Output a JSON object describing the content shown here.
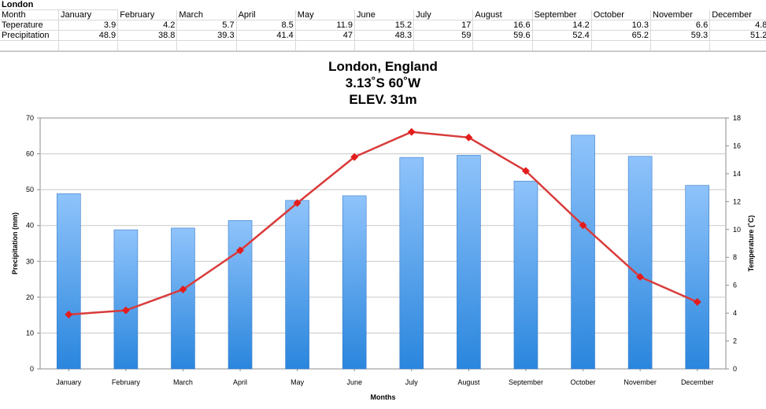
{
  "sheet": {
    "sheet_title": "London",
    "month_header": "Month",
    "temp_label": "Teperature",
    "precip_label": "Precipitation",
    "months": [
      "January",
      "February",
      "March",
      "April",
      "May",
      "June",
      "July",
      "August",
      "September",
      "October",
      "November",
      "December"
    ],
    "temperature": [
      "3.9",
      "4.2",
      "5.7",
      "8.5",
      "11.9",
      "15.2",
      "17",
      "16.6",
      "14.2",
      "10.3",
      "6.6",
      "4.8"
    ],
    "precipitation": [
      "48.9",
      "38.8",
      "39.3",
      "41.4",
      "47",
      "48.3",
      "59",
      "59.6",
      "52.4",
      "65.2",
      "59.3",
      "51.2"
    ]
  },
  "chart": {
    "title_line1": "London, England",
    "title_line2": "3.13˚S 60˚W",
    "title_line3": "ELEV. 31m"
  },
  "chart_data": {
    "type": "bar",
    "title": "London, England 3.13˚S 60˚W ELEV. 31m",
    "xlabel": "Months",
    "ylabel": "Precipitation (mm)",
    "y2label": "Temperature (˚C)",
    "categories": [
      "January",
      "February",
      "March",
      "April",
      "May",
      "June",
      "July",
      "August",
      "September",
      "October",
      "November",
      "December"
    ],
    "ylim": [
      0,
      70
    ],
    "y2lim": [
      0,
      18
    ],
    "yticks": [
      0,
      10,
      20,
      30,
      40,
      50,
      60,
      70
    ],
    "y2ticks": [
      0,
      2,
      4,
      6,
      8,
      10,
      12,
      14,
      16,
      18
    ],
    "grid": true,
    "series": [
      {
        "type": "bar",
        "axis": "left",
        "color": "#4a9be8",
        "values": [
          48.9,
          38.8,
          39.3,
          41.4,
          47,
          48.3,
          59,
          59.6,
          52.4,
          65.2,
          59.3,
          51.2
        ]
      },
      {
        "type": "line",
        "axis": "right",
        "color": "#d93b3b",
        "values": [
          3.9,
          4.2,
          5.7,
          8.5,
          11.9,
          15.2,
          17,
          16.6,
          14.2,
          10.3,
          6.6,
          4.8
        ]
      }
    ]
  }
}
